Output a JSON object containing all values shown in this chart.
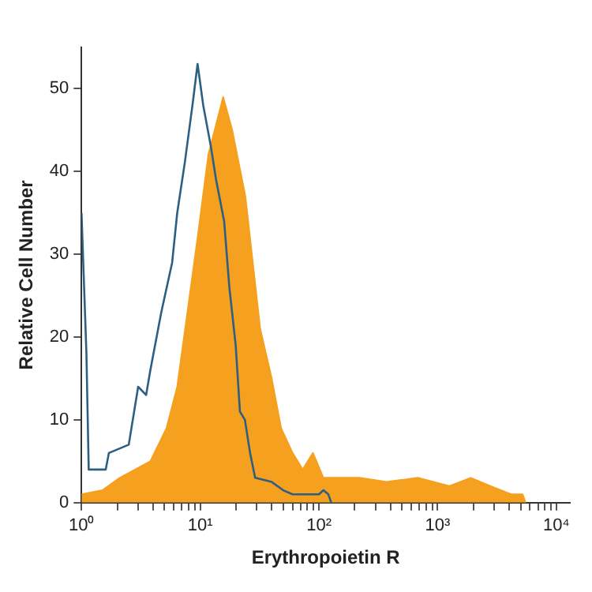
{
  "chart_data": {
    "type": "area",
    "xlabel": "Erythropoietin R",
    "ylabel": "Relative Cell Number",
    "log": "x",
    "grid": false,
    "legend": false,
    "marker": "none",
    "xlim": [
      1,
      13000
    ],
    "ylim": [
      0,
      55
    ],
    "xticks": [
      {
        "value": 1,
        "label": "10⁰"
      },
      {
        "value": 2,
        "label": null
      },
      {
        "value": 3,
        "label": null
      },
      {
        "value": 4,
        "label": null
      },
      {
        "value": 5,
        "label": null
      },
      {
        "value": 6,
        "label": null
      },
      {
        "value": 7,
        "label": null
      },
      {
        "value": 8,
        "label": null
      },
      {
        "value": 9,
        "label": null
      },
      {
        "value": 10,
        "label": "10¹"
      },
      {
        "value": 20,
        "label": null
      },
      {
        "value": 30,
        "label": null
      },
      {
        "value": 40,
        "label": null
      },
      {
        "value": 50,
        "label": null
      },
      {
        "value": 60,
        "label": null
      },
      {
        "value": 70,
        "label": null
      },
      {
        "value": 80,
        "label": null
      },
      {
        "value": 90,
        "label": null
      },
      {
        "value": 100,
        "label": "10²"
      },
      {
        "value": 200,
        "label": null
      },
      {
        "value": 300,
        "label": null
      },
      {
        "value": 400,
        "label": null
      },
      {
        "value": 500,
        "label": null
      },
      {
        "value": 600,
        "label": null
      },
      {
        "value": 700,
        "label": null
      },
      {
        "value": 800,
        "label": null
      },
      {
        "value": 900,
        "label": null
      },
      {
        "value": 1000,
        "label": "10³"
      },
      {
        "value": 2000,
        "label": null
      },
      {
        "value": 3000,
        "label": null
      },
      {
        "value": 4000,
        "label": null
      },
      {
        "value": 5000,
        "label": null
      },
      {
        "value": 6000,
        "label": null
      },
      {
        "value": 7000,
        "label": null
      },
      {
        "value": 8000,
        "label": null
      },
      {
        "value": 9000,
        "label": null
      },
      {
        "value": 10000,
        "label": "10⁴"
      }
    ],
    "yticks": [
      0,
      10,
      20,
      30,
      40,
      50
    ],
    "series": [
      {
        "color": "#f5a01e",
        "x": [
          1,
          1.5,
          2.1,
          3.8,
          5.2,
          6.4,
          7.8,
          9.5,
          11.7,
          15.6,
          18.6,
          24,
          32,
          40,
          48,
          60,
          73,
          89,
          109,
          220,
          370,
          680,
          1250,
          1900,
          2800,
          4200,
          5200,
          5500
        ],
        "values": [
          1,
          1.5,
          3,
          5,
          9,
          14,
          23,
          32,
          42,
          49,
          45,
          37,
          21,
          15,
          9,
          6,
          4,
          6,
          3,
          3,
          2.5,
          3,
          2,
          3,
          2,
          1,
          1,
          0
        ]
      },
      {
        "type": "line",
        "color": "#2c5f82",
        "x": [
          1,
          1.1,
          1.15,
          1.6,
          1.7,
          2.5,
          3,
          3.5,
          3.8,
          4.7,
          5.8,
          6.4,
          7.4,
          8.6,
          9.5,
          10.6,
          12.3,
          13.6,
          15.9,
          17.6,
          19.9,
          21.6,
          23.8,
          26.3,
          29,
          40,
          50,
          60,
          100,
          109,
          120,
          127
        ],
        "values": [
          35,
          18,
          4,
          4,
          6,
          7,
          14,
          13,
          16,
          23,
          29,
          35,
          41,
          48,
          53,
          48,
          43,
          39,
          34,
          26,
          19,
          11,
          10,
          6,
          3,
          2.5,
          1.5,
          1,
          1,
          1.5,
          1,
          0
        ]
      }
    ]
  }
}
